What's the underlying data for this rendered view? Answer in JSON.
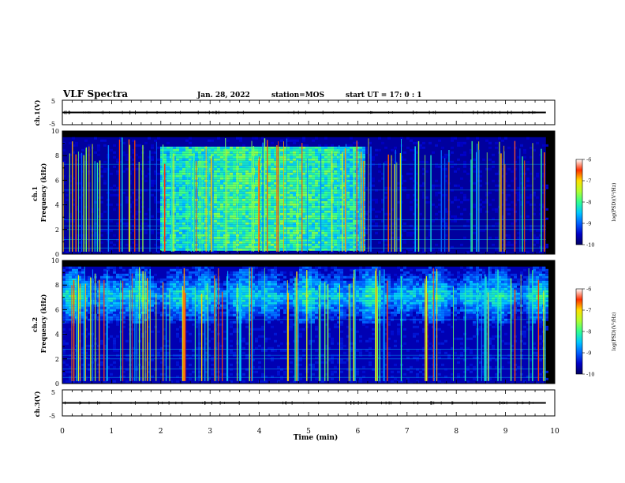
{
  "header": {
    "title": "VLF Spectra",
    "date": "Jan. 28, 2022",
    "station": "station=MOS",
    "start_ut": "start UT =  17: 0 : 1"
  },
  "colors": {
    "background": "#000080",
    "colormap": [
      "#000060",
      "#0000c8",
      "#0060ff",
      "#00c8ff",
      "#30ff90",
      "#b0ff30",
      "#ffe000",
      "#ff3000",
      "#ffffff"
    ]
  },
  "chart_data": [
    {
      "type": "line",
      "panel": "ch1-voltage",
      "ylabel": "ch.1(V)",
      "ylim": [
        -5,
        5
      ],
      "yticks": [
        "5",
        "-5"
      ],
      "series": [
        {
          "x": [
            0,
            9.82
          ],
          "y": [
            0,
            0
          ]
        }
      ]
    },
    {
      "type": "heatmap",
      "panel": "ch1-spectrogram",
      "ylabel": "ch.1\nFrequency (kHz)",
      "xlim": [
        0,
        10
      ],
      "ylim": [
        0,
        10
      ],
      "yticks": [
        "0",
        "2",
        "4",
        "6",
        "8",
        "10"
      ],
      "data_xmax": 9.82,
      "data_fmax": 9.5,
      "broadband_emission": {
        "t_start": 1.98,
        "t_end": 6.1,
        "f_low": 0.3,
        "f_high": 8.9,
        "log_psd": -8.2
      },
      "background_log_psd": -9.7,
      "colorbar": {
        "label": "log(PSD)(V²/Hz)",
        "ticks": [
          "-6",
          "-7",
          "-8",
          "-9",
          "-10"
        ],
        "range": [
          -10,
          -6
        ]
      }
    },
    {
      "type": "heatmap",
      "panel": "ch2-spectrogram",
      "ylabel": "ch.2\nFrequency (kHz)",
      "xlim": [
        0,
        10
      ],
      "ylim": [
        0,
        10
      ],
      "yticks": [
        "0",
        "2",
        "4",
        "6",
        "8",
        "10"
      ],
      "data_xmax": 9.82,
      "data_fmax": 9.5,
      "emission_band": {
        "f_center": 7.2,
        "f_low": 5.0,
        "f_high": 9.5,
        "log_psd": -8.4
      },
      "background_log_psd": -9.6,
      "colorbar": {
        "label": "log(PSD)(V²/Hz)",
        "ticks": [
          "-6",
          "-7",
          "-8",
          "-9",
          "-10"
        ],
        "range": [
          -10,
          -6
        ]
      }
    },
    {
      "type": "line",
      "panel": "ch3-voltage",
      "ylabel": "ch.3(V)",
      "ylim": [
        -5,
        5
      ],
      "yticks": [
        "5",
        "-5"
      ],
      "series": [
        {
          "x": [
            0,
            9.82
          ],
          "y": [
            0,
            0
          ]
        }
      ]
    }
  ],
  "xaxis": {
    "label": "Time (min)",
    "range": [
      0,
      10
    ],
    "ticks": [
      "0",
      "1",
      "2",
      "3",
      "4",
      "5",
      "6",
      "7",
      "8",
      "9",
      "10"
    ]
  }
}
